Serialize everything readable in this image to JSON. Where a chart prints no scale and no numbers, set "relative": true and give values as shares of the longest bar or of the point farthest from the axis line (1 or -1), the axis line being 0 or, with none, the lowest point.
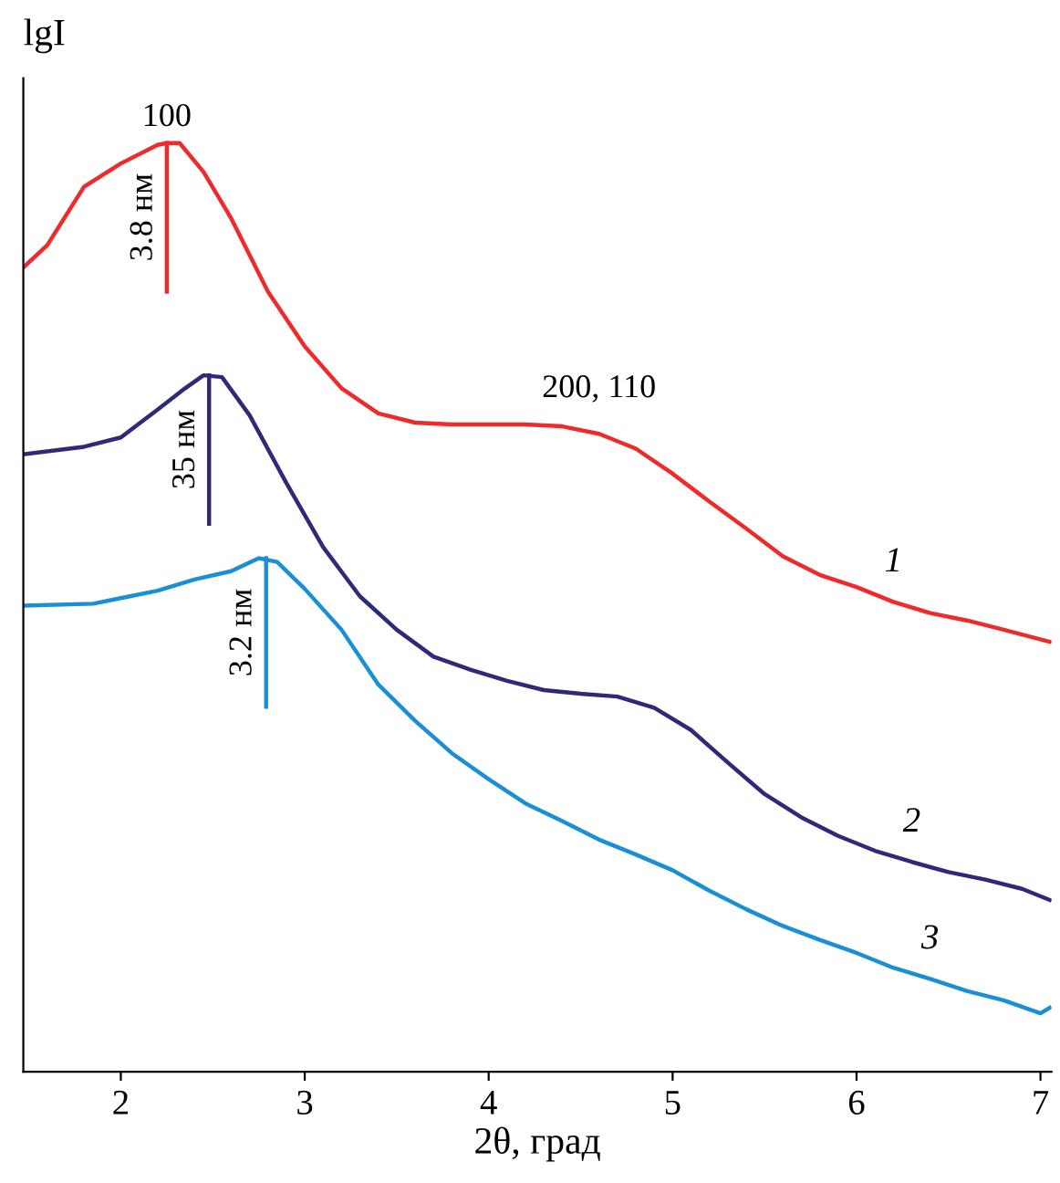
{
  "chart_data": {
    "type": "line",
    "relative": true,
    "xlabel": "2θ, град",
    "ylabel": "lgI",
    "xlim": [
      1.47,
      7.06
    ],
    "xticks": [
      2,
      3,
      4,
      5,
      6,
      7
    ],
    "grid": false,
    "marker": "none",
    "line_style": "solid",
    "series": [
      {
        "name": "1",
        "color": "#ee2a2a",
        "x": [
          1.47,
          1.6,
          1.8,
          2.0,
          2.2,
          2.25,
          2.32,
          2.45,
          2.6,
          2.8,
          3.0,
          3.2,
          3.4,
          3.6,
          3.8,
          4.0,
          4.2,
          4.4,
          4.6,
          4.8,
          5.0,
          5.2,
          5.4,
          5.6,
          5.8,
          6.0,
          6.2,
          6.4,
          6.6,
          6.8,
          7.05
        ],
        "values": [
          0.866,
          0.89,
          0.953,
          0.978,
          0.998,
          1.0,
          1.0,
          0.969,
          0.919,
          0.84,
          0.781,
          0.736,
          0.709,
          0.699,
          0.697,
          0.697,
          0.697,
          0.695,
          0.687,
          0.671,
          0.644,
          0.614,
          0.585,
          0.555,
          0.535,
          0.522,
          0.506,
          0.494,
          0.486,
          0.476,
          0.463
        ]
      },
      {
        "name": "2",
        "color": "#2e2a7a",
        "x": [
          1.47,
          1.8,
          2.0,
          2.2,
          2.35,
          2.45,
          2.55,
          2.7,
          2.9,
          3.1,
          3.3,
          3.5,
          3.7,
          3.9,
          4.1,
          4.3,
          4.5,
          4.7,
          4.9,
          5.1,
          5.3,
          5.5,
          5.7,
          5.9,
          6.1,
          6.3,
          6.5,
          6.7,
          6.9,
          7.05
        ],
        "values": [
          0.665,
          0.673,
          0.683,
          0.713,
          0.736,
          0.75,
          0.748,
          0.707,
          0.634,
          0.565,
          0.512,
          0.476,
          0.447,
          0.433,
          0.421,
          0.411,
          0.407,
          0.404,
          0.392,
          0.368,
          0.333,
          0.299,
          0.274,
          0.254,
          0.238,
          0.226,
          0.215,
          0.207,
          0.197,
          0.185
        ]
      },
      {
        "name": "3",
        "color": "#1a8fd6",
        "x": [
          1.47,
          1.85,
          2.0,
          2.2,
          2.4,
          2.6,
          2.75,
          2.85,
          3.0,
          3.2,
          3.4,
          3.6,
          3.8,
          4.0,
          4.2,
          4.4,
          4.6,
          4.8,
          5.0,
          5.2,
          5.4,
          5.6,
          5.8,
          6.0,
          6.2,
          6.4,
          6.6,
          6.8,
          7.0,
          7.05
        ],
        "values": [
          0.502,
          0.504,
          0.51,
          0.518,
          0.53,
          0.539,
          0.553,
          0.549,
          0.52,
          0.476,
          0.417,
          0.378,
          0.343,
          0.315,
          0.289,
          0.27,
          0.25,
          0.234,
          0.217,
          0.195,
          0.175,
          0.157,
          0.142,
          0.128,
          0.112,
          0.1,
          0.087,
          0.077,
          0.063,
          0.069
        ]
      }
    ],
    "annotations": [
      {
        "text": "100",
        "x": 2.25,
        "y": 1.0
      },
      {
        "text": "3.8 нм",
        "x": 2.25,
        "y": 1.0
      },
      {
        "text": "35 нм",
        "x": 2.48,
        "y": 0.75
      },
      {
        "text": "3.2 нм",
        "x": 2.79,
        "y": 0.553
      },
      {
        "text": "200, 110",
        "x": 4.6,
        "y": 0.697
      }
    ]
  }
}
